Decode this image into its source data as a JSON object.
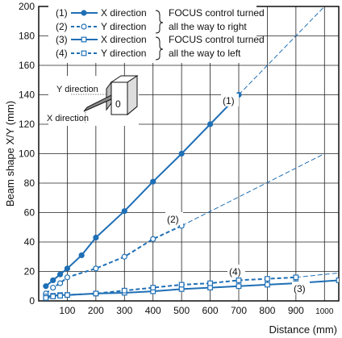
{
  "chart_data": {
    "type": "line",
    "xlabel": "Distance (mm)",
    "ylabel": "Beam shape X/Y (mm)",
    "xlim": [
      0,
      1050
    ],
    "ylim": [
      0,
      200
    ],
    "x_ticks": [
      {
        "value": 100,
        "label": "100"
      },
      {
        "value": 200,
        "label": "200"
      },
      {
        "value": 300,
        "label": "300"
      },
      {
        "value": 400,
        "label": "400"
      },
      {
        "value": 500,
        "label": "500"
      },
      {
        "value": 600,
        "label": "600"
      },
      {
        "value": 700,
        "label": "700"
      },
      {
        "value": 800,
        "label": "800"
      },
      {
        "value": 900,
        "label": "900"
      },
      {
        "value": 1000,
        "label": "1000"
      }
    ],
    "y_ticks": [
      {
        "value": 0,
        "label": "0"
      },
      {
        "value": 20,
        "label": "20"
      },
      {
        "value": 40,
        "label": "40"
      },
      {
        "value": 60,
        "label": "60"
      },
      {
        "value": 80,
        "label": "80"
      },
      {
        "value": 100,
        "label": "100"
      },
      {
        "value": 120,
        "label": "120"
      },
      {
        "value": 140,
        "label": "140"
      },
      {
        "value": 160,
        "label": "160"
      },
      {
        "value": 180,
        "label": "180"
      },
      {
        "value": 200,
        "label": "200"
      }
    ],
    "grid": true,
    "series": [
      {
        "id": "1",
        "label": "(1)",
        "legend_text": "X direction",
        "marker": "circle",
        "color": "#1f6fb5",
        "line_style": "solid",
        "x": [
          25,
          50,
          75,
          100,
          150,
          200,
          300,
          400,
          500,
          600,
          700
        ],
        "y": [
          10,
          14,
          18,
          22,
          31,
          43,
          61,
          81,
          100,
          120,
          140
        ],
        "extrapolation": {
          "x": [
            700,
            1050
          ],
          "y": [
            140,
            210
          ]
        }
      },
      {
        "id": "2",
        "label": "(2)",
        "legend_text": "Y direction",
        "marker": "circle-open",
        "color": "#1f6fb5",
        "line_style": "dotted",
        "x": [
          25,
          50,
          75,
          100,
          200,
          300,
          400,
          500
        ],
        "y": [
          5,
          9,
          12,
          16,
          22,
          30,
          42,
          51
        ],
        "extrapolation": {
          "x": [
            500,
            1000
          ],
          "y": [
            51,
            100
          ]
        }
      },
      {
        "id": "3",
        "label": "(3)",
        "legend_text": "X direction",
        "marker": "square",
        "color": "#1f6fb5",
        "line_style": "solid",
        "x": [
          25,
          50,
          75,
          100,
          200,
          300,
          400,
          500,
          600,
          700,
          800,
          900,
          1050
        ],
        "y": [
          3,
          3.5,
          4,
          4,
          5,
          5.5,
          6.5,
          8,
          9,
          10,
          11,
          12,
          14
        ],
        "extrapolation": null
      },
      {
        "id": "4",
        "label": "(4)",
        "legend_text": "Y direction",
        "marker": "square-open",
        "color": "#1f6fb5",
        "line_style": "dotted",
        "x": [
          25,
          50,
          75,
          100,
          200,
          300,
          400,
          500,
          600,
          700,
          800,
          900
        ],
        "y": [
          2,
          3,
          3.5,
          4,
          5,
          7,
          9,
          11,
          12,
          14,
          15,
          16
        ],
        "extrapolation": {
          "x": [
            900,
            1050
          ],
          "y": [
            16,
            19
          ]
        }
      }
    ],
    "legend": {
      "placement": "top-left",
      "groups": [
        {
          "brace_text": "FOCUS control turned",
          "brace_text_2": "all the way to right"
        },
        {
          "brace_text": "FOCUS control turned",
          "brace_text_2": "all the way to left"
        }
      ]
    },
    "sensor_inset": {
      "y_label": "Y direction",
      "x_label": "X direction",
      "digit": "0"
    }
  }
}
